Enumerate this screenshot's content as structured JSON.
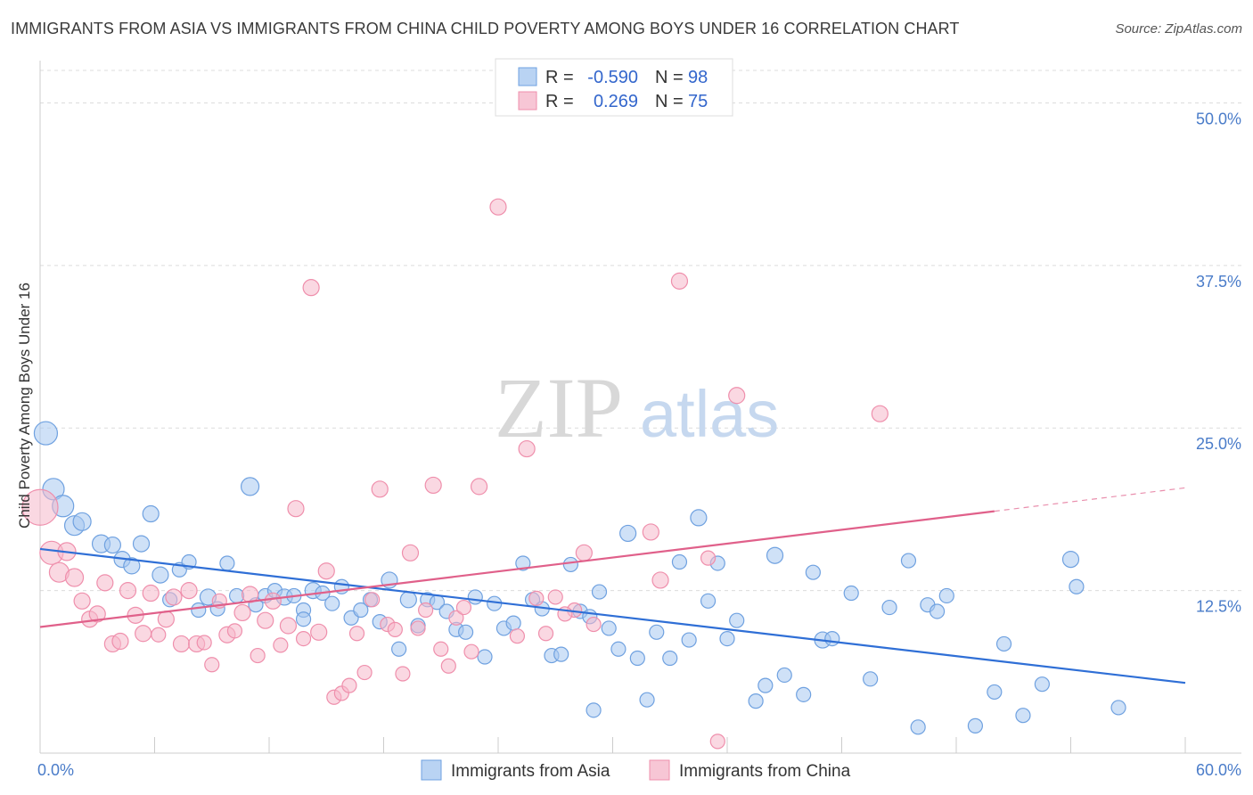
{
  "title": "IMMIGRANTS FROM ASIA VS IMMIGRANTS FROM CHINA CHILD POVERTY AMONG BOYS UNDER 16 CORRELATION CHART",
  "source": "Source: ZipAtlas.com",
  "watermark": {
    "zip": "ZIP",
    "atlas": "atlas"
  },
  "legend_box": [
    {
      "r_label": "R = ",
      "r_value": "-0.590",
      "n_label": "N = ",
      "n_value": "98",
      "color": "#a8c8f0"
    },
    {
      "r_label": "R = ",
      "r_value": "0.269",
      "n_label": "N = ",
      "n_value": "75",
      "color": "#f5b8cb"
    }
  ],
  "chart_data": {
    "type": "scatter",
    "title": "IMMIGRANTS FROM ASIA VS IMMIGRANTS FROM CHINA CHILD POVERTY AMONG BOYS UNDER 16 CORRELATION CHART",
    "xlabel": "",
    "ylabel": "Child Poverty Among Boys Under 16",
    "xlim": [
      0,
      60
    ],
    "ylim": [
      0,
      52.5
    ],
    "x_tick_labels": [
      "0.0%",
      "60.0%"
    ],
    "y_ticks": [
      12.5,
      25.0,
      37.5,
      50.0
    ],
    "y_tick_labels": [
      "12.5%",
      "25.0%",
      "37.5%",
      "50.0%"
    ],
    "grid": "horizontal dashed",
    "legend_position": "bottom-center",
    "series": [
      {
        "name": "Immigrants from Asia",
        "color": "#6fa1e0",
        "fill": "#a8c8f0",
        "trend": {
          "x0": 0,
          "y0": 15.7,
          "x1": 60,
          "y1": 5.4,
          "color": "#2f6fd6"
        },
        "points": [
          [
            0.3,
            24.6,
            13
          ],
          [
            0.7,
            20.3,
            12
          ],
          [
            1.2,
            19.0,
            12
          ],
          [
            1.8,
            17.5,
            11
          ],
          [
            2.2,
            17.8,
            10
          ],
          [
            3.2,
            16.1,
            10
          ],
          [
            3.8,
            16.0,
            9
          ],
          [
            4.3,
            14.9,
            9
          ],
          [
            4.8,
            14.4,
            9
          ],
          [
            5.3,
            16.1,
            9
          ],
          [
            5.8,
            18.4,
            9
          ],
          [
            6.3,
            13.7,
            9
          ],
          [
            6.8,
            11.8,
            8
          ],
          [
            7.3,
            14.1,
            8
          ],
          [
            7.8,
            14.7,
            8
          ],
          [
            8.3,
            11.0,
            8
          ],
          [
            8.8,
            12.0,
            9
          ],
          [
            9.3,
            11.1,
            8
          ],
          [
            9.8,
            14.6,
            8
          ],
          [
            10.3,
            12.1,
            8
          ],
          [
            11.0,
            20.5,
            10
          ],
          [
            11.3,
            11.4,
            8
          ],
          [
            11.8,
            12.1,
            8
          ],
          [
            12.3,
            12.5,
            8
          ],
          [
            12.8,
            12.0,
            9
          ],
          [
            13.3,
            12.1,
            8
          ],
          [
            13.8,
            11.0,
            8
          ],
          [
            14.3,
            12.5,
            9
          ],
          [
            14.8,
            12.3,
            8
          ],
          [
            15.3,
            11.5,
            8
          ],
          [
            15.8,
            12.8,
            8
          ],
          [
            16.3,
            10.4,
            8
          ],
          [
            16.8,
            11.0,
            8
          ],
          [
            17.3,
            11.8,
            8
          ],
          [
            17.8,
            10.1,
            8
          ],
          [
            18.3,
            13.3,
            9
          ],
          [
            18.8,
            8.0,
            8
          ],
          [
            19.3,
            11.8,
            9
          ],
          [
            19.8,
            9.8,
            8
          ],
          [
            20.3,
            11.8,
            8
          ],
          [
            20.8,
            11.6,
            8
          ],
          [
            21.3,
            10.9,
            8
          ],
          [
            21.8,
            9.5,
            8
          ],
          [
            22.3,
            9.3,
            8
          ],
          [
            22.8,
            12.0,
            8
          ],
          [
            23.3,
            7.4,
            8
          ],
          [
            23.8,
            11.5,
            8
          ],
          [
            24.3,
            9.6,
            8
          ],
          [
            24.8,
            10.0,
            8
          ],
          [
            25.3,
            14.6,
            8
          ],
          [
            25.8,
            11.8,
            8
          ],
          [
            26.3,
            11.1,
            8
          ],
          [
            26.8,
            7.5,
            8
          ],
          [
            27.3,
            7.6,
            8
          ],
          [
            27.8,
            14.5,
            8
          ],
          [
            28.3,
            10.9,
            8
          ],
          [
            28.8,
            10.5,
            8
          ],
          [
            29.3,
            12.4,
            8
          ],
          [
            29.8,
            9.6,
            8
          ],
          [
            30.3,
            8.0,
            8
          ],
          [
            30.8,
            16.9,
            9
          ],
          [
            31.3,
            7.3,
            8
          ],
          [
            31.8,
            4.1,
            8
          ],
          [
            32.3,
            9.3,
            8
          ],
          [
            33.0,
            7.3,
            8
          ],
          [
            33.5,
            14.7,
            8
          ],
          [
            34.0,
            8.7,
            8
          ],
          [
            34.5,
            18.1,
            9
          ],
          [
            35.0,
            11.7,
            8
          ],
          [
            35.5,
            14.6,
            8
          ],
          [
            36.0,
            8.8,
            8
          ],
          [
            36.5,
            10.2,
            8
          ],
          [
            37.5,
            4.0,
            8
          ],
          [
            38.0,
            5.2,
            8
          ],
          [
            38.5,
            15.2,
            9
          ],
          [
            39.0,
            6.0,
            8
          ],
          [
            40.0,
            4.5,
            8
          ],
          [
            40.5,
            13.9,
            8
          ],
          [
            41.0,
            8.7,
            9
          ],
          [
            41.5,
            8.8,
            8
          ],
          [
            42.5,
            12.3,
            8
          ],
          [
            43.5,
            5.7,
            8
          ],
          [
            44.5,
            11.2,
            8
          ],
          [
            45.5,
            14.8,
            8
          ],
          [
            46.0,
            2.0,
            8
          ],
          [
            46.5,
            11.4,
            8
          ],
          [
            47.0,
            10.9,
            8
          ],
          [
            47.5,
            12.1,
            8
          ],
          [
            49.0,
            2.1,
            8
          ],
          [
            50.0,
            4.7,
            8
          ],
          [
            50.5,
            8.4,
            8
          ],
          [
            51.5,
            2.9,
            8
          ],
          [
            52.5,
            5.3,
            8
          ],
          [
            54.0,
            14.9,
            9
          ],
          [
            54.3,
            12.8,
            8
          ],
          [
            56.5,
            3.5,
            8
          ],
          [
            29.0,
            3.3,
            8
          ],
          [
            13.8,
            10.3,
            8
          ]
        ]
      },
      {
        "name": "Immigrants from China",
        "color": "#ef8fac",
        "fill": "#f5b8cb",
        "trend": {
          "x0": 0,
          "y0": 9.7,
          "x1": 50.0,
          "y1": 18.6,
          "dash_to_x": 60,
          "dash_to_y": 20.4,
          "color": "#e0608a"
        },
        "points": [
          [
            0.0,
            18.9,
            20
          ],
          [
            0.6,
            15.4,
            13
          ],
          [
            1.0,
            13.9,
            11
          ],
          [
            1.4,
            15.5,
            10
          ],
          [
            1.8,
            13.5,
            10
          ],
          [
            2.2,
            11.7,
            9
          ],
          [
            2.6,
            10.3,
            9
          ],
          [
            3.0,
            10.7,
            9
          ],
          [
            3.4,
            13.1,
            9
          ],
          [
            3.8,
            8.4,
            9
          ],
          [
            4.2,
            8.6,
            9
          ],
          [
            4.6,
            12.5,
            9
          ],
          [
            5.0,
            10.6,
            9
          ],
          [
            5.4,
            9.2,
            9
          ],
          [
            5.8,
            12.3,
            9
          ],
          [
            6.2,
            9.1,
            8
          ],
          [
            6.6,
            10.3,
            9
          ],
          [
            7.0,
            12.0,
            9
          ],
          [
            7.4,
            8.4,
            9
          ],
          [
            7.8,
            12.5,
            9
          ],
          [
            8.2,
            8.4,
            9
          ],
          [
            8.6,
            8.5,
            8
          ],
          [
            9.0,
            6.8,
            8
          ],
          [
            9.4,
            11.7,
            8
          ],
          [
            9.8,
            9.1,
            9
          ],
          [
            10.2,
            9.4,
            8
          ],
          [
            10.6,
            10.8,
            9
          ],
          [
            11.0,
            12.2,
            9
          ],
          [
            11.4,
            7.5,
            8
          ],
          [
            11.8,
            10.2,
            9
          ],
          [
            12.2,
            11.7,
            9
          ],
          [
            12.6,
            8.3,
            8
          ],
          [
            13.0,
            9.8,
            9
          ],
          [
            13.4,
            18.8,
            9
          ],
          [
            13.8,
            8.8,
            8
          ],
          [
            14.2,
            35.8,
            9
          ],
          [
            14.6,
            9.3,
            9
          ],
          [
            15.0,
            14.0,
            9
          ],
          [
            15.4,
            4.3,
            8
          ],
          [
            15.8,
            4.6,
            8
          ],
          [
            16.2,
            5.2,
            8
          ],
          [
            16.6,
            9.2,
            8
          ],
          [
            17.0,
            6.2,
            8
          ],
          [
            17.4,
            11.8,
            8
          ],
          [
            17.8,
            20.3,
            9
          ],
          [
            18.2,
            9.9,
            8
          ],
          [
            18.6,
            9.5,
            8
          ],
          [
            19.0,
            6.1,
            8
          ],
          [
            19.4,
            15.4,
            9
          ],
          [
            19.8,
            9.6,
            8
          ],
          [
            20.2,
            11.0,
            8
          ],
          [
            20.6,
            20.6,
            9
          ],
          [
            21.0,
            8.0,
            8
          ],
          [
            21.4,
            6.7,
            8
          ],
          [
            21.8,
            10.4,
            8
          ],
          [
            22.2,
            11.2,
            8
          ],
          [
            22.6,
            7.8,
            8
          ],
          [
            23.0,
            20.5,
            9
          ],
          [
            24.0,
            42.0,
            9
          ],
          [
            25.0,
            9.0,
            8
          ],
          [
            25.5,
            23.4,
            9
          ],
          [
            26.0,
            11.9,
            8
          ],
          [
            26.5,
            9.2,
            8
          ],
          [
            27.0,
            12.0,
            8
          ],
          [
            28.0,
            11.0,
            8
          ],
          [
            28.5,
            15.4,
            9
          ],
          [
            29.0,
            9.9,
            8
          ],
          [
            32.5,
            13.3,
            9
          ],
          [
            32.0,
            17.0,
            9
          ],
          [
            33.5,
            36.3,
            9
          ],
          [
            35.0,
            15.0,
            8
          ],
          [
            36.5,
            27.5,
            9
          ],
          [
            44.0,
            26.1,
            9
          ],
          [
            35.5,
            0.9,
            8
          ],
          [
            27.5,
            10.7,
            8
          ]
        ]
      }
    ]
  },
  "bottom_legend": [
    {
      "label": "Immigrants from Asia",
      "color": "#a8c8f0",
      "stroke": "#6fa1e0"
    },
    {
      "label": "Immigrants from China",
      "color": "#f5b8cb",
      "stroke": "#ef8fac"
    }
  ]
}
